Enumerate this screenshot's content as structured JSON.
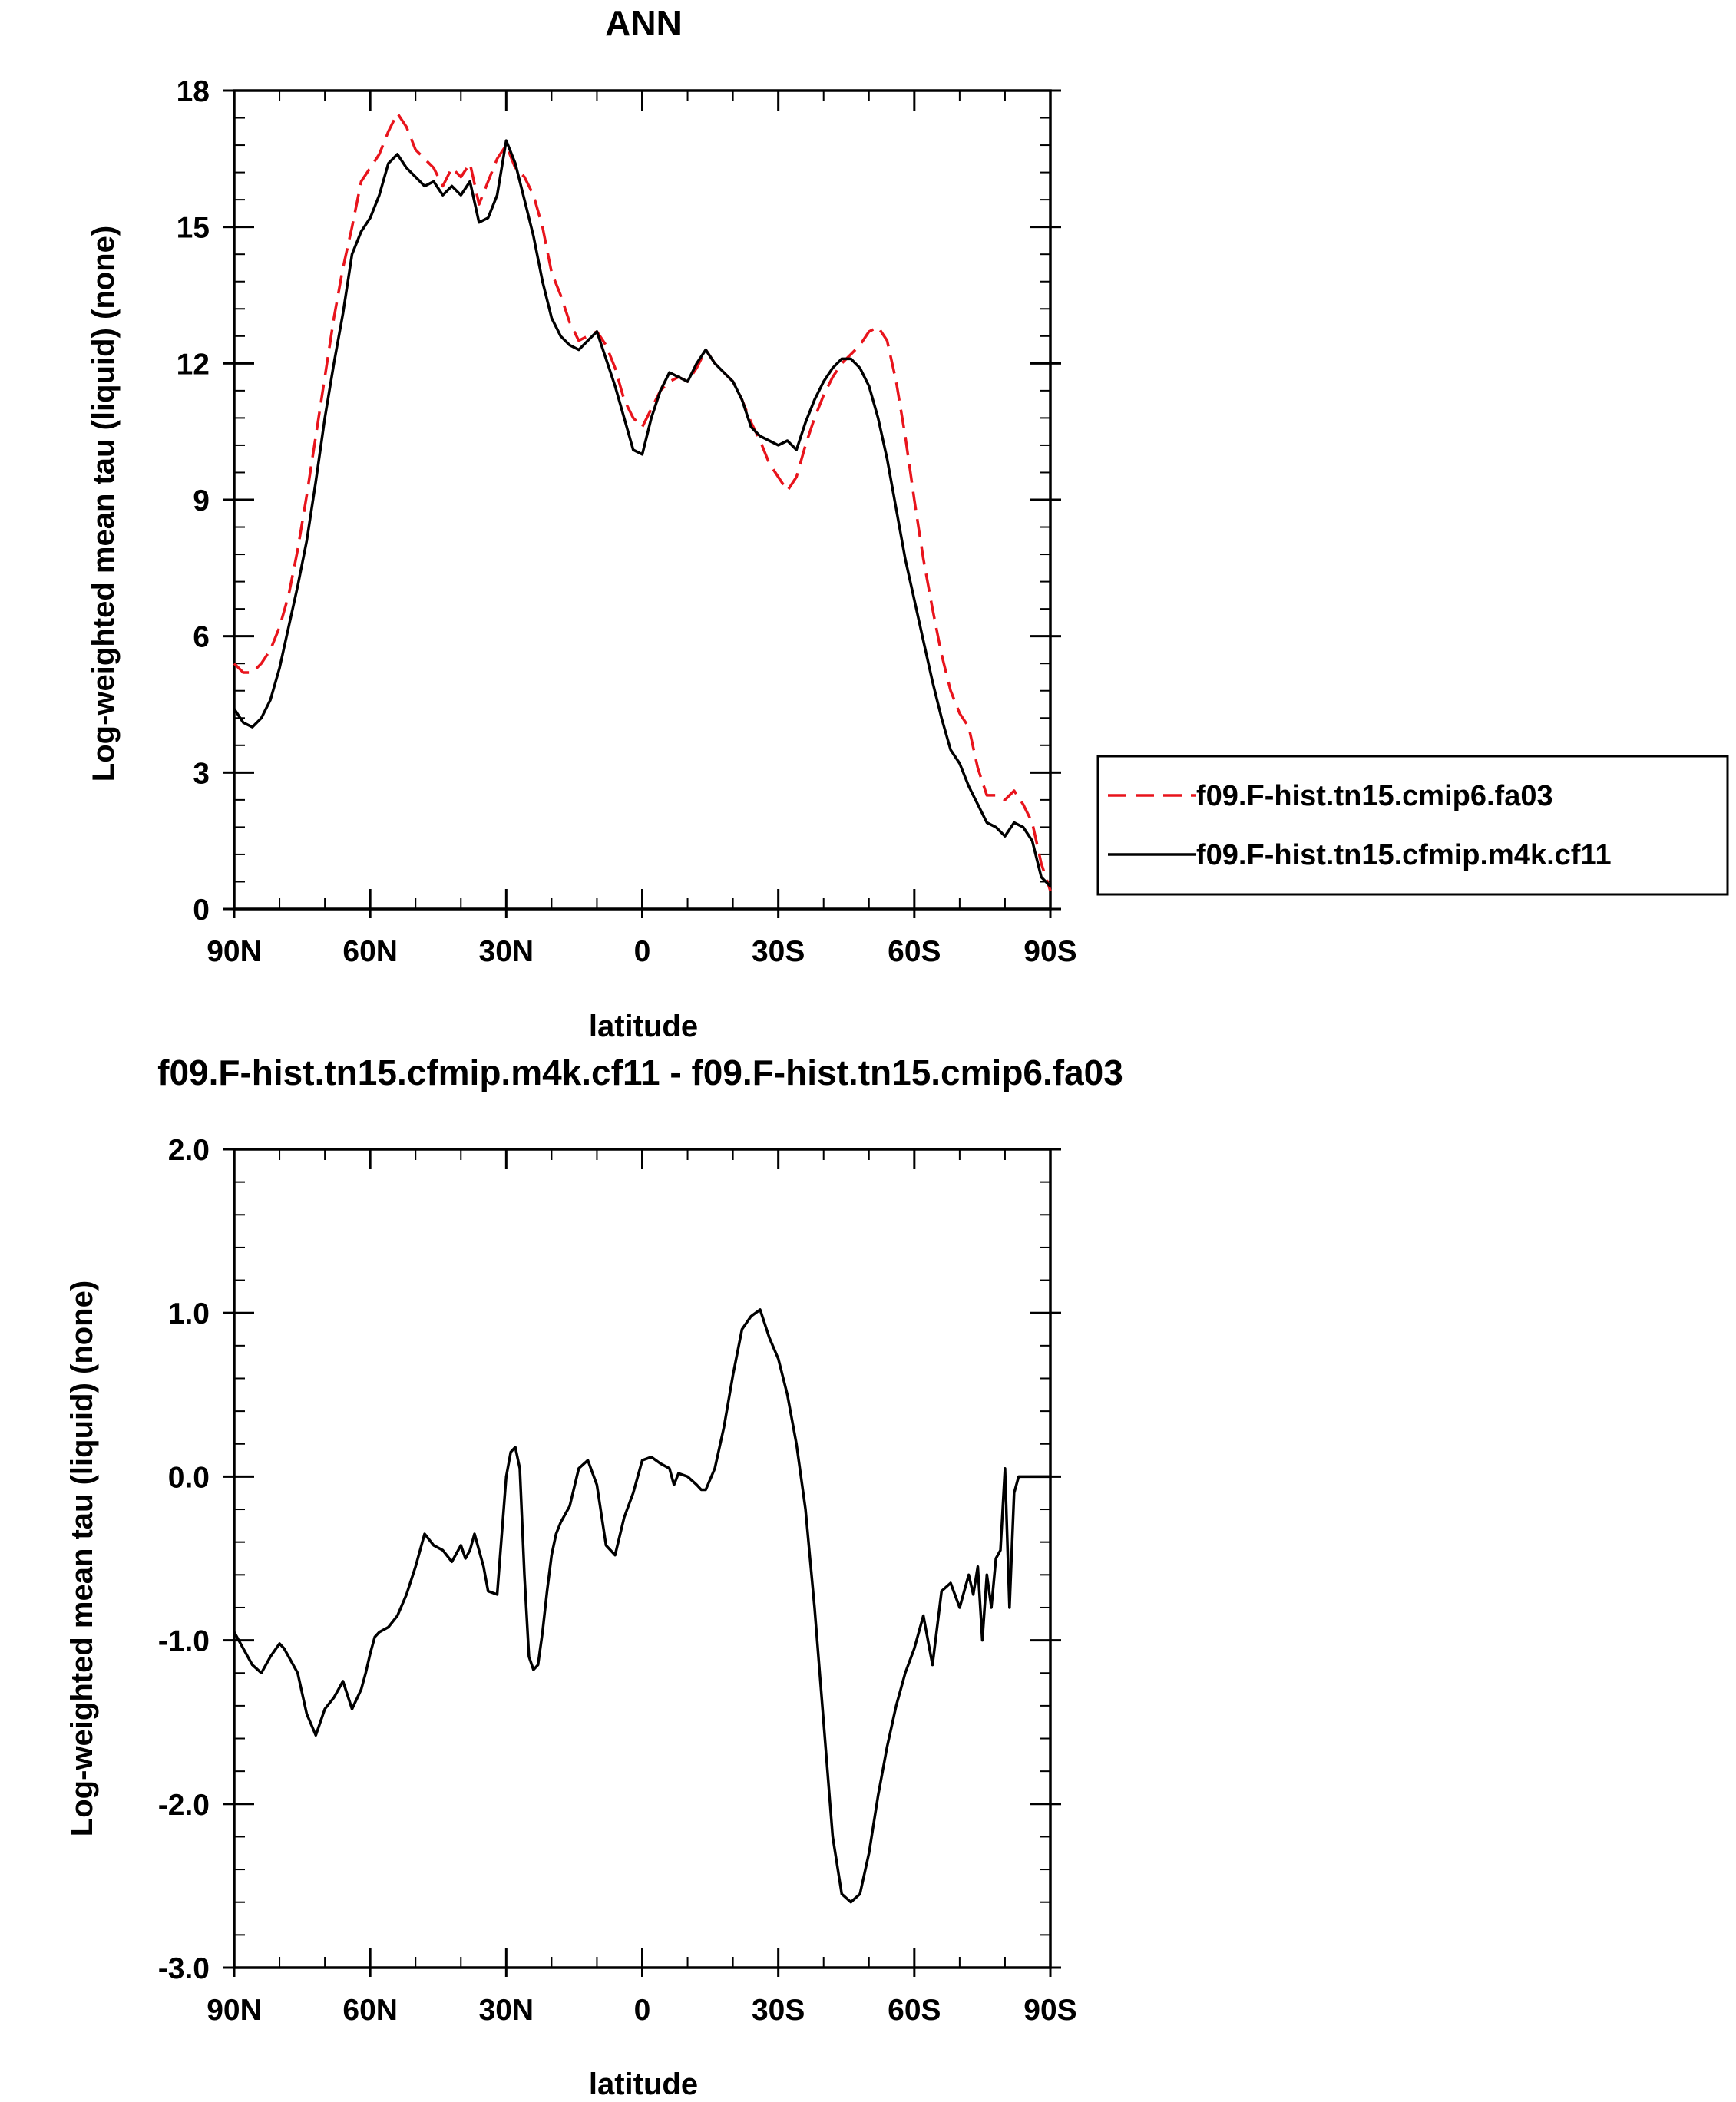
{
  "chart_data": [
    {
      "type": "line",
      "title": "ANN",
      "xlabel": "latitude",
      "ylabel": "Log-weighted mean tau (liquid) (none)",
      "xlim": [
        90,
        -90
      ],
      "ylim": [
        0,
        18
      ],
      "xticks": [
        90,
        60,
        30,
        0,
        -30,
        -60,
        -90
      ],
      "xtick_labels": [
        "90N",
        "60N",
        "30N",
        "0",
        "30S",
        "60S",
        "90S"
      ],
      "yticks": [
        0,
        3,
        6,
        9,
        12,
        15,
        18
      ],
      "ytick_labels": [
        "0",
        "3",
        "6",
        "9",
        "12",
        "15",
        "18"
      ],
      "legend": "outside-right",
      "series": [
        {
          "name": "f09.F-hist.tn15.cmip6.fa03",
          "color": "#e8141c",
          "dash": "dashed",
          "x": [
            90,
            88,
            86,
            84,
            82,
            80,
            78,
            76,
            74,
            72,
            70,
            68,
            66,
            64,
            62,
            60,
            58,
            56,
            54,
            52,
            50,
            48,
            46,
            44,
            42,
            40,
            38,
            36,
            34,
            32,
            30,
            28,
            26,
            24,
            22,
            20,
            18,
            16,
            14,
            12,
            10,
            8,
            6,
            4,
            2,
            0,
            -2,
            -4,
            -6,
            -8,
            -10,
            -12,
            -14,
            -16,
            -18,
            -20,
            -22,
            -24,
            -26,
            -28,
            -30,
            -32,
            -34,
            -36,
            -38,
            -40,
            -42,
            -44,
            -46,
            -48,
            -50,
            -52,
            -54,
            -56,
            -58,
            -60,
            -62,
            -64,
            -66,
            -68,
            -70,
            -72,
            -74,
            -76,
            -78,
            -80,
            -82,
            -84,
            -86,
            -88,
            -90
          ],
          "y": [
            5.4,
            5.2,
            5.2,
            5.4,
            5.7,
            6.2,
            6.9,
            7.9,
            9.1,
            10.4,
            11.7,
            13.0,
            14.1,
            15.0,
            16.0,
            16.3,
            16.6,
            17.1,
            17.5,
            17.2,
            16.7,
            16.5,
            16.3,
            15.9,
            16.3,
            16.1,
            16.4,
            15.5,
            16.0,
            16.5,
            16.8,
            16.3,
            16.1,
            15.7,
            15.0,
            14.0,
            13.5,
            12.9,
            12.5,
            12.6,
            12.7,
            12.4,
            11.9,
            11.2,
            10.8,
            10.6,
            11.0,
            11.4,
            11.6,
            11.7,
            11.6,
            11.9,
            12.3,
            12.0,
            11.8,
            11.6,
            11.2,
            10.7,
            10.3,
            9.8,
            9.5,
            9.2,
            9.5,
            10.2,
            10.8,
            11.3,
            11.7,
            12.0,
            12.2,
            12.4,
            12.7,
            12.8,
            12.5,
            11.6,
            10.4,
            9.0,
            7.7,
            6.6,
            5.6,
            4.8,
            4.3,
            4.0,
            3.1,
            2.5,
            2.5,
            2.4,
            2.6,
            2.3,
            1.9,
            1.0,
            0.4
          ]
        },
        {
          "name": "f09.F-hist.tn15.cfmip.m4k.cf11",
          "color": "#000000",
          "dash": "solid",
          "x": [
            90,
            88,
            86,
            84,
            82,
            80,
            78,
            76,
            74,
            72,
            70,
            68,
            66,
            64,
            62,
            60,
            58,
            56,
            54,
            52,
            50,
            48,
            46,
            44,
            42,
            40,
            38,
            36,
            34,
            32,
            30,
            28,
            26,
            24,
            22,
            20,
            18,
            16,
            14,
            12,
            10,
            8,
            6,
            4,
            2,
            0,
            -2,
            -4,
            -6,
            -8,
            -10,
            -12,
            -14,
            -16,
            -18,
            -20,
            -22,
            -24,
            -26,
            -28,
            -30,
            -32,
            -34,
            -36,
            -38,
            -40,
            -42,
            -44,
            -46,
            -48,
            -50,
            -52,
            -54,
            -56,
            -58,
            -60,
            -62,
            -64,
            -66,
            -68,
            -70,
            -72,
            -74,
            -76,
            -78,
            -80,
            -82,
            -84,
            -86,
            -88,
            -90
          ],
          "y": [
            4.4,
            4.1,
            4.0,
            4.2,
            4.6,
            5.3,
            6.2,
            7.1,
            8.1,
            9.4,
            10.8,
            12.0,
            13.1,
            14.4,
            14.9,
            15.2,
            15.7,
            16.4,
            16.6,
            16.3,
            16.1,
            15.9,
            16.0,
            15.7,
            15.9,
            15.7,
            16.0,
            15.1,
            15.2,
            15.7,
            16.9,
            16.4,
            15.6,
            14.8,
            13.8,
            13.0,
            12.6,
            12.4,
            12.3,
            12.5,
            12.7,
            12.1,
            11.5,
            10.8,
            10.1,
            10.0,
            10.8,
            11.4,
            11.8,
            11.7,
            11.6,
            12.0,
            12.3,
            12.0,
            11.8,
            11.6,
            11.2,
            10.6,
            10.4,
            10.3,
            10.2,
            10.3,
            10.1,
            10.7,
            11.2,
            11.6,
            11.9,
            12.1,
            12.1,
            11.9,
            11.5,
            10.8,
            9.9,
            8.8,
            7.7,
            6.8,
            5.9,
            5.0,
            4.2,
            3.5,
            3.2,
            2.7,
            2.3,
            1.9,
            1.8,
            1.6,
            1.9,
            1.8,
            1.5,
            0.7,
            0.5
          ]
        }
      ]
    },
    {
      "type": "line",
      "title": "f09.F-hist.tn15.cfmip.m4k.cf11 - f09.F-hist.tn15.cmip6.fa03",
      "xlabel": "latitude",
      "ylabel": "Log-weighted mean tau (liquid) (none)",
      "xlim": [
        90,
        -90
      ],
      "ylim": [
        -3.0,
        2.0
      ],
      "xticks": [
        90,
        60,
        30,
        0,
        -30,
        -60,
        -90
      ],
      "xtick_labels": [
        "90N",
        "60N",
        "30N",
        "0",
        "30S",
        "60S",
        "90S"
      ],
      "yticks": [
        -3.0,
        -2.0,
        -1.0,
        0.0,
        1.0,
        2.0
      ],
      "ytick_labels": [
        "-3.0",
        "-2.0",
        "-1.0",
        "0.0",
        "1.0",
        "2.0"
      ],
      "series": [
        {
          "color": "#000000",
          "dash": "solid",
          "x": [
            90,
            88,
            86,
            84,
            82,
            80,
            79,
            78,
            76,
            74,
            72,
            70,
            68,
            67,
            66,
            64,
            62,
            61,
            60,
            59,
            58,
            56,
            54,
            52,
            50,
            48,
            46,
            44,
            42,
            40,
            39,
            38,
            37,
            36,
            35,
            34,
            32,
            30,
            29,
            28,
            27,
            26,
            25,
            24,
            23,
            22,
            21,
            20,
            19,
            18,
            16,
            14,
            12,
            10,
            8,
            6,
            4,
            2,
            0,
            -2,
            -4,
            -6,
            -7,
            -8,
            -10,
            -12,
            -13,
            -14,
            -16,
            -18,
            -20,
            -22,
            -24,
            -26,
            -28,
            -30,
            -32,
            -34,
            -36,
            -38,
            -40,
            -42,
            -44,
            -46,
            -48,
            -50,
            -52,
            -54,
            -56,
            -58,
            -60,
            -62,
            -64,
            -66,
            -68,
            -70,
            -72,
            -73,
            -74,
            -75,
            -76,
            -77,
            -78,
            -79,
            -80,
            -81,
            -82,
            -83,
            -84,
            -85,
            -86,
            -87,
            -88,
            -89,
            -90
          ],
          "y": [
            -0.95,
            -1.05,
            -1.15,
            -1.2,
            -1.1,
            -1.02,
            -1.05,
            -1.1,
            -1.2,
            -1.45,
            -1.58,
            -1.42,
            -1.35,
            -1.3,
            -1.25,
            -1.42,
            -1.3,
            -1.2,
            -1.08,
            -0.98,
            -0.95,
            -0.92,
            -0.85,
            -0.72,
            -0.55,
            -0.35,
            -0.42,
            -0.45,
            -0.52,
            -0.42,
            -0.5,
            -0.45,
            -0.35,
            -0.45,
            -0.55,
            -0.7,
            -0.72,
            0.0,
            0.15,
            0.18,
            0.05,
            -0.6,
            -1.1,
            -1.18,
            -1.15,
            -0.95,
            -0.7,
            -0.48,
            -0.35,
            -0.28,
            -0.18,
            0.05,
            0.1,
            -0.05,
            -0.42,
            -0.48,
            -0.25,
            -0.1,
            0.1,
            0.12,
            0.08,
            0.05,
            -0.05,
            0.02,
            0.0,
            -0.05,
            -0.08,
            -0.08,
            0.05,
            0.3,
            0.62,
            0.9,
            0.98,
            1.02,
            0.85,
            0.72,
            0.5,
            0.2,
            -0.2,
            -0.8,
            -1.5,
            -2.2,
            -2.55,
            -2.6,
            -2.55,
            -2.3,
            -1.95,
            -1.65,
            -1.4,
            -1.2,
            -1.05,
            -0.85,
            -1.15,
            -0.7,
            -0.65,
            -0.8,
            -0.6,
            -0.72,
            -0.55,
            -1.0,
            -0.6,
            -0.8,
            -0.5,
            -0.45,
            0.05,
            -0.8,
            -0.1,
            0.0,
            0.0,
            0.0,
            0.0,
            0.0,
            0.0,
            0.0,
            0.0
          ]
        }
      ]
    }
  ]
}
